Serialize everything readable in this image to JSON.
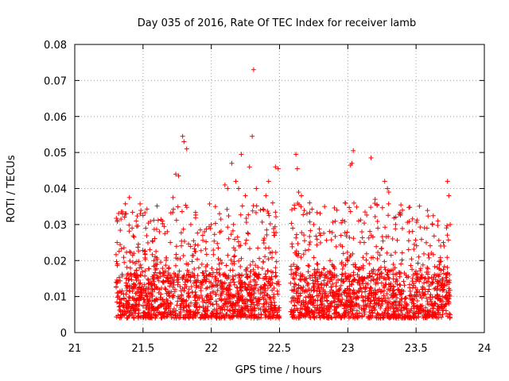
{
  "chart_data": {
    "type": "scatter",
    "title": "Day 035 of 2016, Rate Of TEC Index for receiver lamb",
    "xlabel": "GPS time / hours",
    "ylabel": "ROTI / TECUs",
    "xlim": [
      21,
      24
    ],
    "ylim": [
      0,
      0.08
    ],
    "x_ticks": [
      21,
      21.5,
      22,
      22.5,
      23,
      23.5,
      24
    ],
    "x_tick_labels": [
      "21",
      "21.5",
      "22",
      "22.5",
      "23",
      "23.5",
      "24"
    ],
    "y_ticks": [
      0,
      0.01,
      0.02,
      0.03,
      0.04,
      0.05,
      0.06,
      0.07,
      0.08
    ],
    "y_tick_labels": [
      "0",
      "0.01",
      "0.02",
      "0.03",
      "0.04",
      "0.05",
      "0.06",
      "0.07",
      "0.08"
    ],
    "grid": true,
    "marker": "plus",
    "marker_color": "#ff0000",
    "series": [
      {
        "name": "ROTI",
        "points": [
          [
            21.31,
            0.025
          ],
          [
            21.35,
            0.0335
          ],
          [
            21.37,
            0.033
          ],
          [
            21.4,
            0.0375
          ],
          [
            21.42,
            0.029
          ],
          [
            21.45,
            0.031
          ],
          [
            21.48,
            0.033
          ],
          [
            21.5,
            0.0325
          ],
          [
            21.52,
            0.029
          ],
          [
            21.55,
            0.023
          ],
          [
            21.58,
            0.02
          ],
          [
            21.62,
            0.028
          ],
          [
            21.66,
            0.0275
          ],
          [
            21.7,
            0.025
          ],
          [
            21.72,
            0.0375
          ],
          [
            21.74,
            0.044
          ],
          [
            21.76,
            0.0435
          ],
          [
            21.79,
            0.0545
          ],
          [
            21.8,
            0.053
          ],
          [
            21.82,
            0.051
          ],
          [
            21.85,
            0.03
          ],
          [
            21.88,
            0.0225
          ],
          [
            21.92,
            0.0285
          ],
          [
            21.95,
            0.028
          ],
          [
            22.0,
            0.03
          ],
          [
            22.03,
            0.035
          ],
          [
            22.06,
            0.033
          ],
          [
            22.1,
            0.041
          ],
          [
            22.12,
            0.04
          ],
          [
            22.15,
            0.047
          ],
          [
            22.18,
            0.042
          ],
          [
            22.2,
            0.04
          ],
          [
            22.22,
            0.0495
          ],
          [
            22.25,
            0.038
          ],
          [
            22.28,
            0.046
          ],
          [
            22.3,
            0.0545
          ],
          [
            22.31,
            0.073
          ],
          [
            22.33,
            0.04
          ],
          [
            22.36,
            0.034
          ],
          [
            22.4,
            0.038
          ],
          [
            22.42,
            0.042
          ],
          [
            22.45,
            0.036
          ],
          [
            22.47,
            0.046
          ],
          [
            22.49,
            0.0455
          ],
          [
            22.62,
            0.0495
          ],
          [
            22.63,
            0.0455
          ],
          [
            22.64,
            0.039
          ],
          [
            22.66,
            0.038
          ],
          [
            22.7,
            0.033
          ],
          [
            22.72,
            0.036
          ],
          [
            22.75,
            0.03
          ],
          [
            22.8,
            0.027
          ],
          [
            22.83,
            0.035
          ],
          [
            22.87,
            0.02
          ],
          [
            22.92,
            0.034
          ],
          [
            22.95,
            0.027
          ],
          [
            22.98,
            0.036
          ],
          [
            23.02,
            0.0465
          ],
          [
            23.03,
            0.047
          ],
          [
            23.04,
            0.0505
          ],
          [
            23.08,
            0.031
          ],
          [
            23.12,
            0.025
          ],
          [
            23.17,
            0.0485
          ],
          [
            23.2,
            0.037
          ],
          [
            23.22,
            0.029
          ],
          [
            23.27,
            0.042
          ],
          [
            23.29,
            0.04
          ],
          [
            23.3,
            0.039
          ],
          [
            23.35,
            0.03
          ],
          [
            23.4,
            0.034
          ],
          [
            23.45,
            0.028
          ],
          [
            23.52,
            0.021
          ],
          [
            23.58,
            0.029
          ],
          [
            23.62,
            0.03
          ],
          [
            23.66,
            0.031
          ],
          [
            23.7,
            0.025
          ],
          [
            23.73,
            0.042
          ],
          [
            23.74,
            0.038
          ],
          [
            23.75,
            0.03
          ]
        ],
        "dense_bands": [
          {
            "x_start": 21.3,
            "x_end": 22.5,
            "y_low": 0.004,
            "y_high": 0.016
          },
          {
            "x_start": 22.58,
            "x_end": 23.75,
            "y_low": 0.004,
            "y_high": 0.016
          }
        ]
      }
    ]
  }
}
